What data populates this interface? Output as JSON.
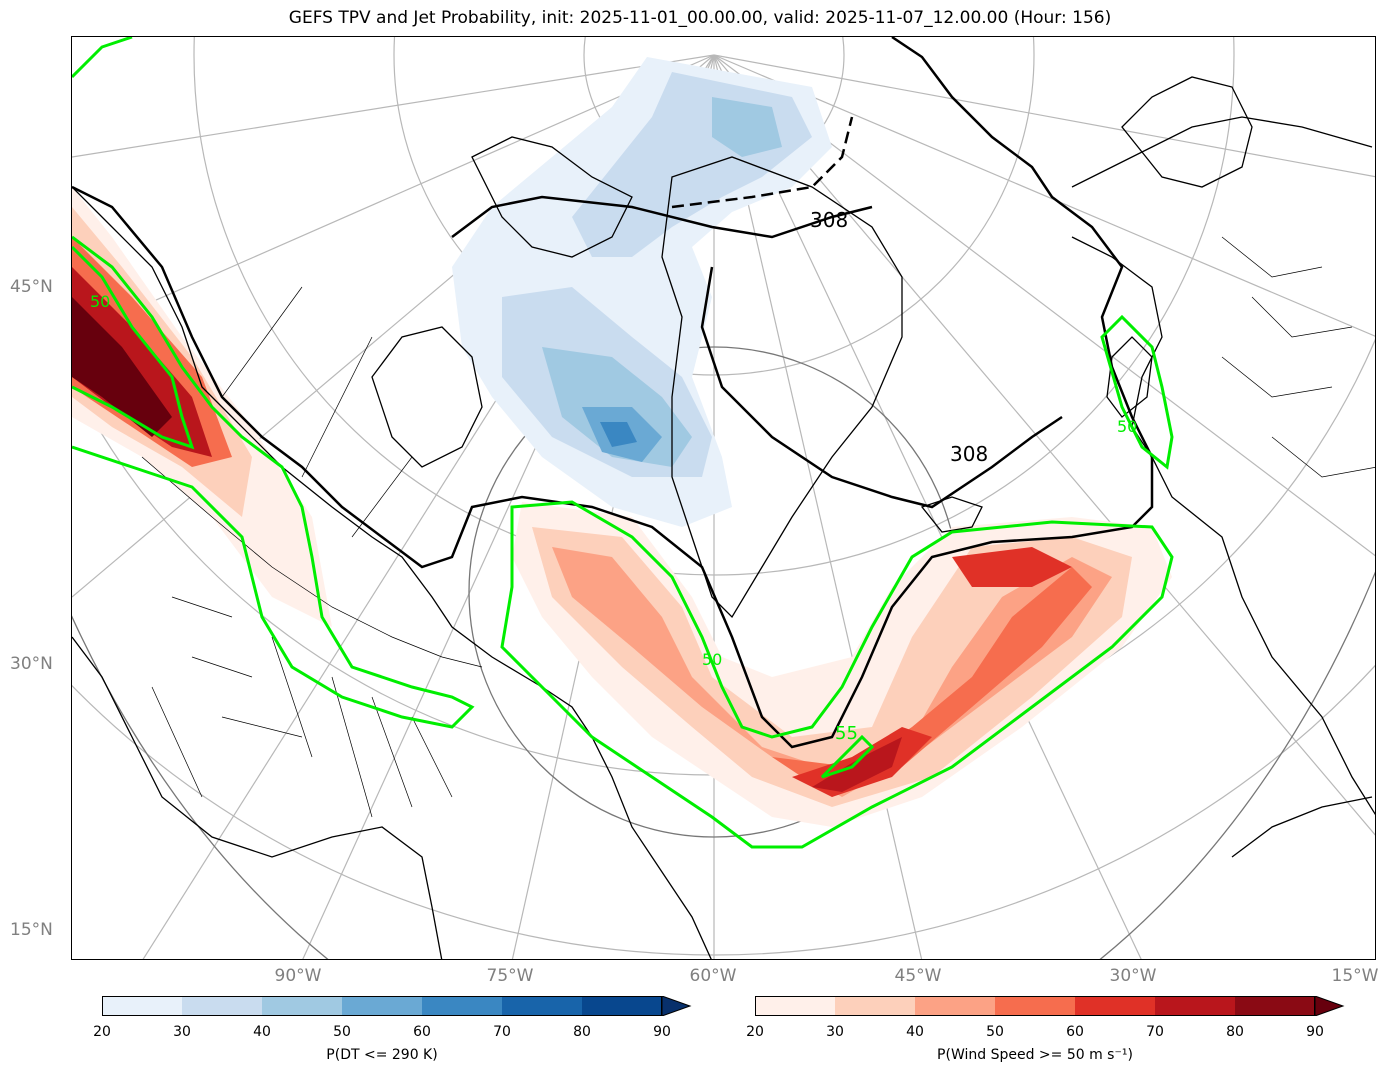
{
  "title": "GEFS TPV and Jet Probability, init: 2025-11-01_00.00.00, valid: 2025-11-07_12.00.00 (Hour: 156)",
  "lat_labels": [
    "45°N",
    "30°N",
    "15°N"
  ],
  "lon_labels": [
    "90°W",
    "75°W",
    "60°W",
    "45°W",
    "30°W",
    "15°W"
  ],
  "contour_labels": {
    "theta_black": [
      "308",
      "308"
    ],
    "jet_green": [
      "50",
      "50",
      "55",
      "50"
    ]
  },
  "colorbars": [
    {
      "name": "blues",
      "label": "P(DT <= 290 K)",
      "ticks": [
        "20",
        "30",
        "40",
        "50",
        "60",
        "70",
        "80",
        "90"
      ],
      "colors": [
        "#e8f1fa",
        "#c9dcef",
        "#a0c9e2",
        "#6aa9d4",
        "#3a87c2",
        "#1864aa",
        "#08478e"
      ],
      "extend_color": "#08306b"
    },
    {
      "name": "reds",
      "label": "P(Wind Speed >= 50 m s⁻¹)",
      "ticks": [
        "20",
        "30",
        "40",
        "50",
        "60",
        "70",
        "80",
        "90"
      ],
      "colors": [
        "#fff0ea",
        "#fdd0bb",
        "#fca285",
        "#f66d4e",
        "#e03127",
        "#b9161c",
        "#8a0a14"
      ],
      "extend_color": "#67000d"
    }
  ]
}
